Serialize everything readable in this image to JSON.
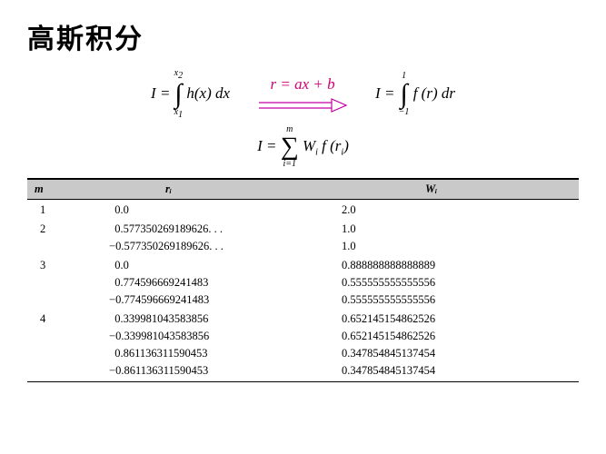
{
  "title": "高斯积分",
  "equations": {
    "left_prefix": "I =",
    "left_upper": "x",
    "left_upper_sub": "2",
    "left_lower": "x",
    "left_lower_sub": "1",
    "left_body": "h(x) dx",
    "subst": "r = ax + b",
    "right_prefix": "I =",
    "right_upper": "1",
    "right_lower": "−1",
    "right_body": "f (r) dr",
    "sum_prefix": "I =",
    "sum_upper": "m",
    "sum_lower": "i=1",
    "sum_body_w": "W",
    "sum_body_wsub": "i",
    "sum_body_f": " f (r",
    "sum_body_fsub": "i",
    "sum_body_close": ")"
  },
  "arrow": {
    "stroke": "#c400a6",
    "width": 100,
    "height": 18
  },
  "table": {
    "headers": {
      "m": "m",
      "r": "rᵢ",
      "w": "Wᵢ"
    },
    "groups": [
      {
        "m": "1",
        "rows": [
          {
            "r": "0.0",
            "w": "2.0",
            "rneg": false
          }
        ]
      },
      {
        "m": "2",
        "rows": [
          {
            "r": "0.577350269189626. . .",
            "w": "1.0",
            "rneg": false
          },
          {
            "r": "0.577350269189626. . .",
            "w": "1.0",
            "rneg": true
          }
        ]
      },
      {
        "m": "3",
        "rows": [
          {
            "r": "0.0",
            "w": "0.888888888888889",
            "rneg": false
          },
          {
            "r": "0.774596669241483",
            "w": "0.555555555555556",
            "rneg": false
          },
          {
            "r": "0.774596669241483",
            "w": "0.555555555555556",
            "rneg": true
          }
        ]
      },
      {
        "m": "4",
        "rows": [
          {
            "r": "0.339981043583856",
            "w": "0.652145154862526",
            "rneg": false
          },
          {
            "r": "0.339981043583856",
            "w": "0.652145154862526",
            "rneg": true
          },
          {
            "r": "0.861136311590453",
            "w": "0.347854845137454",
            "rneg": false
          },
          {
            "r": "0.861136311590453",
            "w": "0.347854845137454",
            "rneg": true
          }
        ]
      }
    ]
  }
}
